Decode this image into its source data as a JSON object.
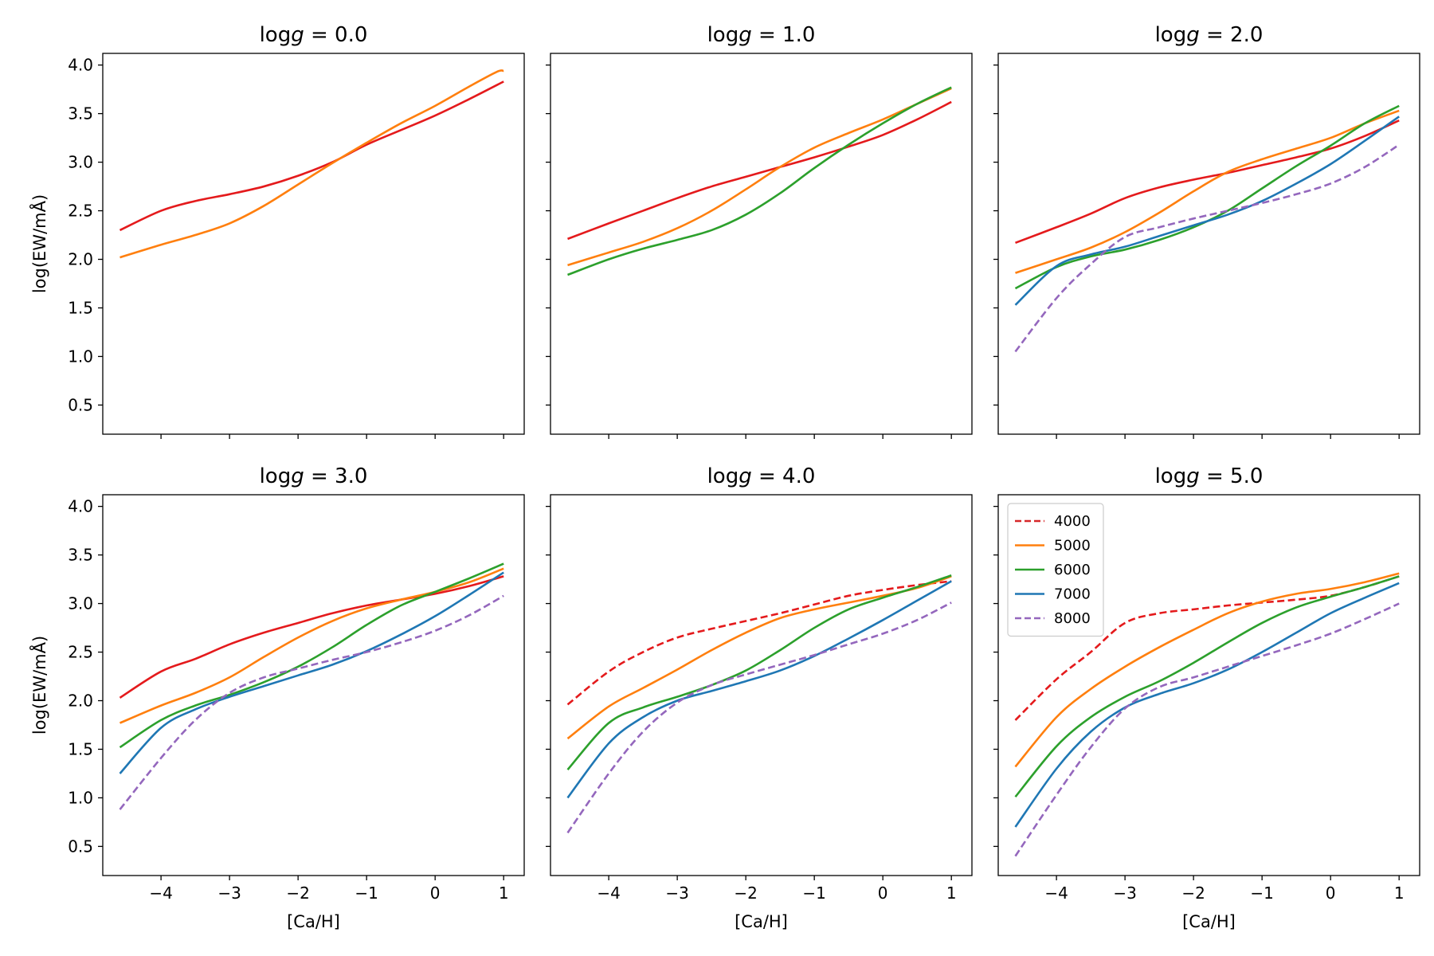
{
  "chart_data": {
    "type": "line",
    "layout": "2x3 grid, shared x and y axes",
    "xlabel": "[Ca/H]",
    "ylabel": "log(EW/mÅ)",
    "xlim": [
      -4.85,
      1.3
    ],
    "ylim": [
      0.2,
      4.12
    ],
    "xticks": [
      -4,
      -3,
      -2,
      -1,
      0,
      1
    ],
    "xtick_labels": [
      "−4",
      "−3",
      "−2",
      "−1",
      "0",
      "1"
    ],
    "yticks": [
      0.5,
      1.0,
      1.5,
      2.0,
      2.5,
      3.0,
      3.5,
      4.0
    ],
    "ytick_labels": [
      "0.5",
      "1.0",
      "1.5",
      "2.0",
      "2.5",
      "3.0",
      "3.5",
      "4.0"
    ],
    "legend": {
      "panel_index": 5,
      "placement": "upper-left",
      "entries": [
        {
          "label": "4000",
          "color": "#d62728",
          "dashed": true
        },
        {
          "label": "5000",
          "color": "#ff7f0e",
          "dashed": false
        },
        {
          "label": "6000",
          "color": "#2ca02c",
          "dashed": false
        },
        {
          "label": "7000",
          "color": "#1f77b4",
          "dashed": false
        },
        {
          "label": "8000",
          "color": "#9467bd",
          "dashed": true
        }
      ]
    },
    "panels": [
      {
        "title_prefix": "log",
        "title_var": "g",
        "title_value": " = 0.0",
        "series": [
          {
            "name": "4000",
            "color": "#e41a1c",
            "dashed": false,
            "x": [
              -4.6,
              -4.0,
              -3.5,
              -3.0,
              -2.5,
              -2.0,
              -1.5,
              -1.0,
              -0.5,
              0.0,
              0.5,
              1.0
            ],
            "y": [
              2.3,
              2.5,
              2.6,
              2.67,
              2.75,
              2.86,
              3.0,
              3.18,
              3.33,
              3.48,
              3.65,
              3.83
            ]
          },
          {
            "name": "5000",
            "color": "#ff7f0e",
            "dashed": false,
            "x": [
              -4.6,
              -4.0,
              -3.5,
              -3.0,
              -2.5,
              -2.0,
              -1.5,
              -1.0,
              -0.5,
              0.0,
              0.5,
              0.9,
              1.0
            ],
            "y": [
              2.02,
              2.15,
              2.25,
              2.37,
              2.55,
              2.77,
              2.99,
              3.2,
              3.4,
              3.58,
              3.78,
              3.93,
              3.94
            ]
          }
        ]
      },
      {
        "title_prefix": "log",
        "title_var": "g",
        "title_value": " = 1.0",
        "series": [
          {
            "name": "4000",
            "color": "#e41a1c",
            "dashed": false,
            "x": [
              -4.6,
              -4.0,
              -3.5,
              -3.0,
              -2.5,
              -2.0,
              -1.5,
              -1.0,
              -0.5,
              0.0,
              0.5,
              1.0
            ],
            "y": [
              2.21,
              2.37,
              2.5,
              2.63,
              2.75,
              2.85,
              2.95,
              3.05,
              3.16,
              3.28,
              3.44,
              3.62
            ]
          },
          {
            "name": "5000",
            "color": "#ff7f0e",
            "dashed": false,
            "x": [
              -4.6,
              -4.0,
              -3.5,
              -3.0,
              -2.5,
              -2.0,
              -1.5,
              -1.0,
              -0.5,
              0.0,
              0.5,
              1.0
            ],
            "y": [
              1.94,
              2.07,
              2.18,
              2.32,
              2.5,
              2.72,
              2.95,
              3.15,
              3.3,
              3.44,
              3.6,
              3.76
            ]
          },
          {
            "name": "6000",
            "color": "#2ca02c",
            "dashed": false,
            "x": [
              -4.6,
              -4.0,
              -3.5,
              -3.0,
              -2.5,
              -2.0,
              -1.5,
              -1.0,
              -0.5,
              0.0,
              0.5,
              1.0
            ],
            "y": [
              1.84,
              2.0,
              2.11,
              2.2,
              2.3,
              2.46,
              2.68,
              2.94,
              3.18,
              3.4,
              3.6,
              3.77
            ]
          }
        ]
      },
      {
        "title_prefix": "log",
        "title_var": "g",
        "title_value": " = 2.0",
        "series": [
          {
            "name": "4000",
            "color": "#e41a1c",
            "dashed": false,
            "x": [
              -4.6,
              -4.0,
              -3.5,
              -3.0,
              -2.5,
              -2.0,
              -1.5,
              -1.0,
              -0.5,
              0.0,
              0.5,
              1.0
            ],
            "y": [
              2.17,
              2.33,
              2.47,
              2.63,
              2.74,
              2.82,
              2.89,
              2.97,
              3.05,
              3.14,
              3.27,
              3.43
            ]
          },
          {
            "name": "5000",
            "color": "#ff7f0e",
            "dashed": false,
            "x": [
              -4.6,
              -4.0,
              -3.5,
              -3.0,
              -2.5,
              -2.0,
              -1.5,
              -1.0,
              -0.5,
              0.0,
              0.5,
              1.0
            ],
            "y": [
              1.86,
              2.0,
              2.12,
              2.28,
              2.48,
              2.7,
              2.9,
              3.03,
              3.14,
              3.25,
              3.4,
              3.53
            ]
          },
          {
            "name": "6000",
            "color": "#2ca02c",
            "dashed": false,
            "x": [
              -4.6,
              -4.0,
              -3.5,
              -3.0,
              -2.5,
              -2.0,
              -1.5,
              -1.0,
              -0.5,
              0.0,
              0.5,
              1.0
            ],
            "y": [
              1.7,
              1.92,
              2.03,
              2.1,
              2.2,
              2.33,
              2.5,
              2.73,
              2.96,
              3.17,
              3.4,
              3.58
            ]
          },
          {
            "name": "7000",
            "color": "#1f77b4",
            "dashed": false,
            "x": [
              -4.6,
              -4.0,
              -3.5,
              -3.0,
              -2.5,
              -2.0,
              -1.5,
              -1.0,
              -0.5,
              0.0,
              0.5,
              1.0
            ],
            "y": [
              1.53,
              1.93,
              2.05,
              2.13,
              2.24,
              2.35,
              2.46,
              2.6,
              2.78,
              2.98,
              3.22,
              3.47
            ]
          },
          {
            "name": "8000",
            "color": "#9467bd",
            "dashed": true,
            "x": [
              -4.6,
              -4.0,
              -3.5,
              -3.0,
              -2.5,
              -2.0,
              -1.5,
              -1.0,
              -0.5,
              0.0,
              0.5,
              1.0
            ],
            "y": [
              1.05,
              1.6,
              1.95,
              2.23,
              2.33,
              2.42,
              2.5,
              2.58,
              2.67,
              2.78,
              2.95,
              3.18
            ]
          }
        ]
      },
      {
        "title_prefix": "log",
        "title_var": "g",
        "title_value": " = 3.0",
        "series": [
          {
            "name": "4000",
            "color": "#e41a1c",
            "dashed": false,
            "x": [
              -4.6,
              -4.0,
              -3.5,
              -3.0,
              -2.5,
              -2.0,
              -1.5,
              -1.0,
              -0.5,
              0.0,
              0.5,
              1.0
            ],
            "y": [
              2.03,
              2.3,
              2.43,
              2.58,
              2.7,
              2.8,
              2.9,
              2.98,
              3.04,
              3.1,
              3.18,
              3.28
            ]
          },
          {
            "name": "5000",
            "color": "#ff7f0e",
            "dashed": false,
            "x": [
              -4.6,
              -4.0,
              -3.5,
              -3.0,
              -2.5,
              -2.0,
              -1.5,
              -1.0,
              -0.5,
              0.0,
              0.5,
              1.0
            ],
            "y": [
              1.77,
              1.95,
              2.08,
              2.24,
              2.45,
              2.65,
              2.82,
              2.95,
              3.04,
              3.12,
              3.22,
              3.36
            ]
          },
          {
            "name": "6000",
            "color": "#2ca02c",
            "dashed": false,
            "x": [
              -4.6,
              -4.0,
              -3.5,
              -3.0,
              -2.5,
              -2.0,
              -1.5,
              -1.0,
              -0.5,
              0.0,
              0.5,
              1.0
            ],
            "y": [
              1.52,
              1.8,
              1.95,
              2.06,
              2.19,
              2.35,
              2.55,
              2.78,
              2.98,
              3.12,
              3.26,
              3.41
            ]
          },
          {
            "name": "7000",
            "color": "#1f77b4",
            "dashed": false,
            "x": [
              -4.6,
              -4.0,
              -3.5,
              -3.0,
              -2.5,
              -2.0,
              -1.5,
              -1.0,
              -0.5,
              0.0,
              0.5,
              1.0
            ],
            "y": [
              1.25,
              1.72,
              1.91,
              2.04,
              2.15,
              2.26,
              2.37,
              2.51,
              2.68,
              2.87,
              3.09,
              3.32
            ]
          },
          {
            "name": "8000",
            "color": "#9467bd",
            "dashed": true,
            "x": [
              -4.6,
              -4.0,
              -3.5,
              -3.0,
              -2.5,
              -2.0,
              -1.5,
              -1.0,
              -0.5,
              0.0,
              0.5,
              1.0
            ],
            "y": [
              0.88,
              1.41,
              1.8,
              2.08,
              2.24,
              2.33,
              2.42,
              2.5,
              2.6,
              2.72,
              2.88,
              3.08
            ]
          }
        ]
      },
      {
        "title_prefix": "log",
        "title_var": "g",
        "title_value": " = 4.0",
        "series": [
          {
            "name": "4000",
            "color": "#e41a1c",
            "dashed": true,
            "x": [
              -4.6,
              -4.0,
              -3.5,
              -3.0,
              -2.5,
              -2.0,
              -1.5,
              -1.0,
              -0.5,
              0.0,
              0.5,
              1.0
            ],
            "y": [
              1.96,
              2.3,
              2.5,
              2.65,
              2.74,
              2.82,
              2.9,
              2.99,
              3.08,
              3.14,
              3.19,
              3.23
            ]
          },
          {
            "name": "5000",
            "color": "#ff7f0e",
            "dashed": false,
            "x": [
              -4.6,
              -4.0,
              -3.5,
              -3.0,
              -2.5,
              -2.0,
              -1.5,
              -1.0,
              -0.5,
              0.0,
              0.5,
              1.0
            ],
            "y": [
              1.61,
              1.94,
              2.13,
              2.32,
              2.52,
              2.7,
              2.85,
              2.94,
              3.01,
              3.08,
              3.16,
              3.28
            ]
          },
          {
            "name": "6000",
            "color": "#2ca02c",
            "dashed": false,
            "x": [
              -4.6,
              -4.0,
              -3.5,
              -3.0,
              -2.5,
              -2.0,
              -1.5,
              -1.0,
              -0.5,
              0.0,
              0.5,
              1.0
            ],
            "y": [
              1.29,
              1.77,
              1.93,
              2.04,
              2.16,
              2.31,
              2.52,
              2.75,
              2.94,
              3.06,
              3.17,
              3.29
            ]
          },
          {
            "name": "7000",
            "color": "#1f77b4",
            "dashed": false,
            "x": [
              -4.6,
              -4.0,
              -3.5,
              -3.0,
              -2.5,
              -2.0,
              -1.5,
              -1.0,
              -0.5,
              0.0,
              0.5,
              1.0
            ],
            "y": [
              1.0,
              1.56,
              1.83,
              2.0,
              2.1,
              2.2,
              2.31,
              2.46,
              2.64,
              2.83,
              3.03,
              3.23
            ]
          },
          {
            "name": "8000",
            "color": "#9467bd",
            "dashed": true,
            "x": [
              -4.6,
              -4.0,
              -3.5,
              -3.0,
              -2.5,
              -2.0,
              -1.5,
              -1.0,
              -0.5,
              0.0,
              0.5,
              1.0
            ],
            "y": [
              0.64,
              1.25,
              1.68,
              1.98,
              2.16,
              2.27,
              2.37,
              2.47,
              2.58,
              2.69,
              2.83,
              3.01
            ]
          }
        ]
      },
      {
        "title_prefix": "log",
        "title_var": "g",
        "title_value": " = 5.0",
        "series": [
          {
            "name": "4000",
            "color": "#e41a1c",
            "dashed": true,
            "x": [
              -4.6,
              -4.0,
              -3.5,
              -3.0,
              -2.5,
              -2.0,
              -1.5,
              -1.0,
              -0.5,
              0.0,
              0.5,
              1.0
            ],
            "y": [
              1.8,
              2.22,
              2.5,
              2.8,
              2.9,
              2.94,
              2.98,
              3.01,
              3.04,
              3.08,
              3.17,
              3.28
            ]
          },
          {
            "name": "5000",
            "color": "#ff7f0e",
            "dashed": false,
            "x": [
              -4.6,
              -4.0,
              -3.5,
              -3.0,
              -2.5,
              -2.0,
              -1.5,
              -1.0,
              -0.5,
              0.0,
              0.5,
              1.0
            ],
            "y": [
              1.32,
              1.83,
              2.12,
              2.35,
              2.55,
              2.73,
              2.9,
              3.02,
              3.1,
              3.15,
              3.22,
              3.31
            ]
          },
          {
            "name": "6000",
            "color": "#2ca02c",
            "dashed": false,
            "x": [
              -4.6,
              -4.0,
              -3.5,
              -3.0,
              -2.5,
              -2.0,
              -1.5,
              -1.0,
              -0.5,
              0.0,
              0.5,
              1.0
            ],
            "y": [
              1.01,
              1.53,
              1.83,
              2.04,
              2.2,
              2.39,
              2.6,
              2.8,
              2.96,
              3.07,
              3.17,
              3.28
            ]
          },
          {
            "name": "7000",
            "color": "#1f77b4",
            "dashed": false,
            "x": [
              -4.6,
              -4.0,
              -3.5,
              -3.0,
              -2.5,
              -2.0,
              -1.5,
              -1.0,
              -0.5,
              0.0,
              0.5,
              1.0
            ],
            "y": [
              0.7,
              1.3,
              1.68,
              1.93,
              2.07,
              2.18,
              2.32,
              2.5,
              2.7,
              2.9,
              3.06,
              3.21
            ]
          },
          {
            "name": "8000",
            "color": "#9467bd",
            "dashed": true,
            "x": [
              -4.6,
              -4.0,
              -3.5,
              -3.0,
              -2.5,
              -2.0,
              -1.5,
              -1.0,
              -0.5,
              0.0,
              0.5,
              1.0
            ],
            "y": [
              0.4,
              1.03,
              1.52,
              1.92,
              2.14,
              2.24,
              2.35,
              2.46,
              2.57,
              2.69,
              2.84,
              3.0
            ]
          }
        ]
      }
    ]
  }
}
